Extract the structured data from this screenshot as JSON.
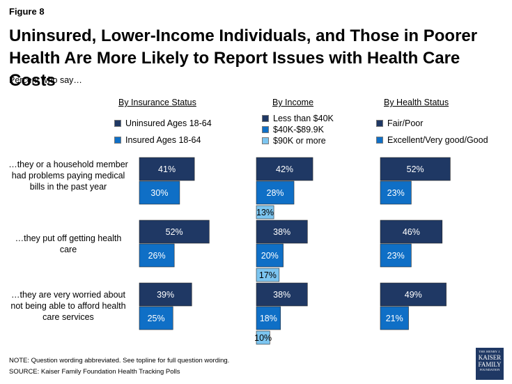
{
  "figure_label": "Figure 8",
  "title": "Uninsured, Lower-Income Individuals, and Those in Poorer Health Are More Likely to Report Issues with Health Care Costs",
  "subtitle": "Percent who say…",
  "questions": [
    "…they or a household member had problems paying medical bills in the past year",
    "…they put off getting health care",
    "…they are very worried about not being able to afford health care services"
  ],
  "note": "NOTE: Question wording abbreviated. See topline for full question wording.",
  "source": "SOURCE: Kaiser Family Foundation Health Tracking Polls",
  "logo": {
    "line1": "THE HENRY J.",
    "line2": "KAISER",
    "line3": "FAMILY",
    "line4": "FOUNDATION"
  },
  "colors": {
    "dark": "#1f3864",
    "medium": "#0f6fc6",
    "light": "#7cc5f0"
  },
  "chart_data": [
    {
      "type": "bar",
      "title": "By Insurance Status",
      "categories": [
        "…they or a household member had problems paying medical bills in the past year",
        "…they put off getting health care",
        "…they are very worried about not being able to afford health care services"
      ],
      "series": [
        {
          "name": "Uninsured Ages 18-64",
          "color": "#1f3864",
          "values": [
            41,
            52,
            39
          ]
        },
        {
          "name": "Insured Ages 18-64",
          "color": "#0f6fc6",
          "values": [
            30,
            26,
            25
          ]
        }
      ],
      "value_suffix": "%",
      "orientation": "horizontal",
      "grid": false,
      "legend": "top"
    },
    {
      "type": "bar",
      "title": "By Income",
      "categories": [
        "…they or a household member had problems paying medical bills in the past year",
        "…they put off getting health care",
        "…they are very worried about not being able to afford health care services"
      ],
      "series": [
        {
          "name": "Less than $40K",
          "color": "#1f3864",
          "values": [
            42,
            38,
            38
          ]
        },
        {
          "name": "$40K-$89.9K",
          "color": "#0f6fc6",
          "values": [
            28,
            20,
            18
          ]
        },
        {
          "name": "$90K or more",
          "color": "#7cc5f0",
          "values": [
            13,
            17,
            10
          ]
        }
      ],
      "value_suffix": "%",
      "orientation": "horizontal",
      "grid": false,
      "legend": "top"
    },
    {
      "type": "bar",
      "title": "By Health Status",
      "categories": [
        "…they or a household member had problems paying medical bills in the past year",
        "…they put off getting health care",
        "…they are very worried about not being able to afford health care services"
      ],
      "series": [
        {
          "name": "Fair/Poor",
          "color": "#1f3864",
          "values": [
            52,
            46,
            49
          ]
        },
        {
          "name": "Excellent/Very good/Good",
          "color": "#0f6fc6",
          "values": [
            23,
            23,
            21
          ]
        }
      ],
      "value_suffix": "%",
      "orientation": "horizontal",
      "grid": false,
      "legend": "top"
    }
  ]
}
